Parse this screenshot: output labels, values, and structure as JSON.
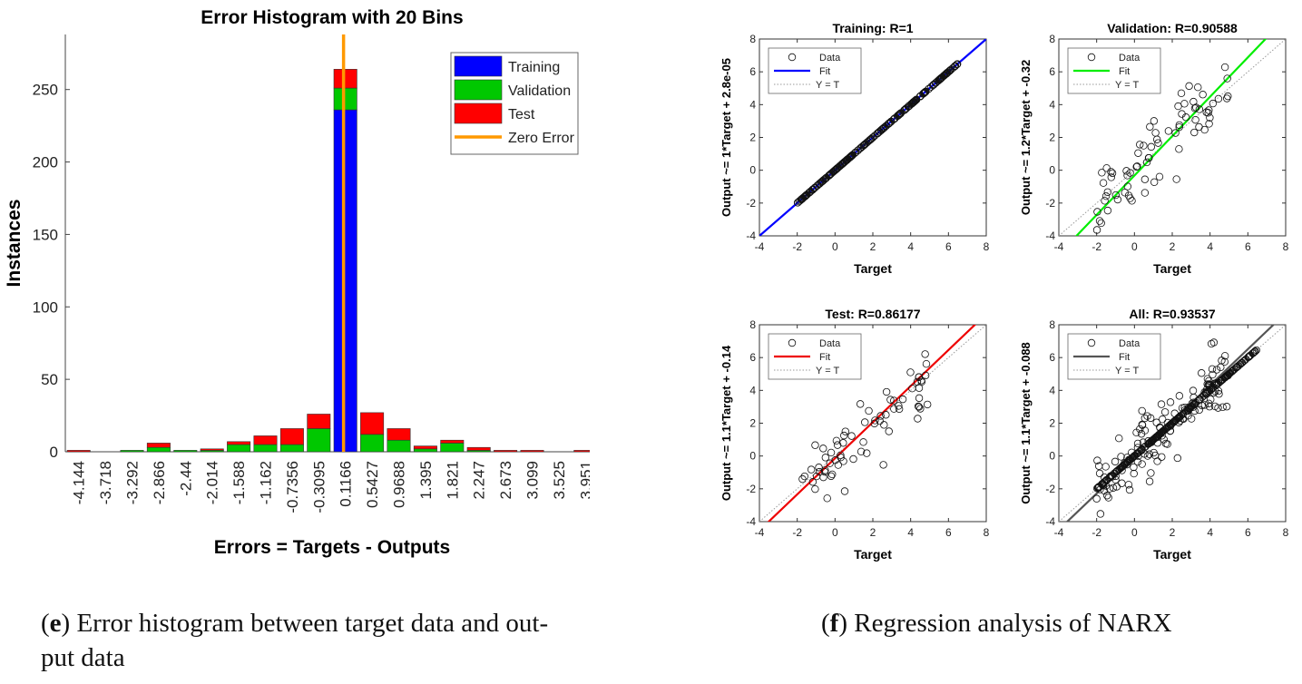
{
  "chart_data": [
    {
      "type": "bar",
      "stacked": true,
      "title": "Error Histogram with 20 Bins",
      "xlabel": "Errors = Targets - Outputs",
      "ylabel": "Instances",
      "ylim": [
        0,
        288
      ],
      "yticks": [
        0,
        50,
        100,
        150,
        200,
        250
      ],
      "categories": [
        "-4.144",
        "-3.718",
        "-3.292",
        "-2.866",
        "-2.44",
        "-2.014",
        "-1.588",
        "-1.162",
        "-0.7356",
        "-0.3095",
        "0.1166",
        "0.5427",
        "0.9688",
        "1.395",
        "1.821",
        "2.247",
        "2.673",
        "3.099",
        "3.525",
        "3.951"
      ],
      "series": [
        {
          "name": "Training",
          "color": "#0000ff",
          "values": [
            0,
            0,
            0,
            0,
            0,
            0,
            0,
            0,
            0,
            0,
            236,
            0,
            0,
            0,
            0,
            0,
            0,
            0,
            0,
            0
          ]
        },
        {
          "name": "Validation",
          "color": "#00c800",
          "values": [
            0,
            0,
            1,
            3,
            1,
            1,
            5,
            5,
            5,
            16,
            15,
            12,
            8,
            2,
            6,
            1,
            0,
            0,
            0,
            0
          ]
        },
        {
          "name": "Test",
          "color": "#ff0000",
          "values": [
            1,
            0,
            0,
            3,
            0,
            1,
            2,
            6,
            11,
            10,
            13,
            15,
            8,
            2,
            2,
            2,
            1,
            1,
            0,
            1
          ]
        }
      ],
      "zero_error": {
        "name": "Zero Error",
        "color": "#ff9900",
        "x_index": 9.93
      },
      "legend_position": "top-right"
    },
    {
      "type": "scatter",
      "title": "Training: R=1",
      "xlabel": "Target",
      "ylabel": "Output ~= 1*Target + 2.8e-05",
      "xlim": [
        -4,
        8
      ],
      "ylim": [
        -4,
        8
      ],
      "ticks": [
        -4,
        -2,
        0,
        2,
        4,
        6,
        8
      ],
      "fit": {
        "slope": 1,
        "intercept": 2.8e-05,
        "color": "#0000ff"
      },
      "legend": [
        "Data",
        "Fit",
        "Y = T"
      ],
      "points": "dense points along Y = T from -2 to 6.5"
    },
    {
      "type": "scatter",
      "title": "Validation: R=0.90588",
      "xlabel": "Target",
      "ylabel": "Output ~= 1.2*Target + -0.32",
      "xlim": [
        -4,
        8
      ],
      "ylim": [
        -4,
        8
      ],
      "ticks": [
        -4,
        -2,
        0,
        2,
        4,
        6,
        8
      ],
      "fit": {
        "slope": 1.2,
        "intercept": -0.32,
        "color": "#00ee00"
      },
      "legend": [
        "Data",
        "Fit",
        "Y = T"
      ]
    },
    {
      "type": "scatter",
      "title": "Test: R=0.86177",
      "xlabel": "Target",
      "ylabel": "Output ~= 1.1*Target + -0.14",
      "xlim": [
        -4,
        8
      ],
      "ylim": [
        -4,
        8
      ],
      "ticks": [
        -4,
        -2,
        0,
        2,
        4,
        6,
        8
      ],
      "fit": {
        "slope": 1.1,
        "intercept": -0.14,
        "color": "#ee0000"
      },
      "legend": [
        "Data",
        "Fit",
        "Y = T"
      ]
    },
    {
      "type": "scatter",
      "title": "All: R=0.93537",
      "xlabel": "Target",
      "ylabel": "Output ~= 1.1*Target + -0.088",
      "xlim": [
        -4,
        8
      ],
      "ylim": [
        -4,
        8
      ],
      "ticks": [
        -4,
        -2,
        0,
        2,
        4,
        6,
        8
      ],
      "fit": {
        "slope": 1.1,
        "intercept": -0.088,
        "color": "#555555"
      },
      "legend": [
        "Data",
        "Fit",
        "Y = T"
      ]
    }
  ],
  "captions": {
    "e_label": "e",
    "e_text": ") Error histogram between target data and out-",
    "e_text2": "put data",
    "f_label": "f",
    "f_text": ") Regression analysis of NARX"
  }
}
